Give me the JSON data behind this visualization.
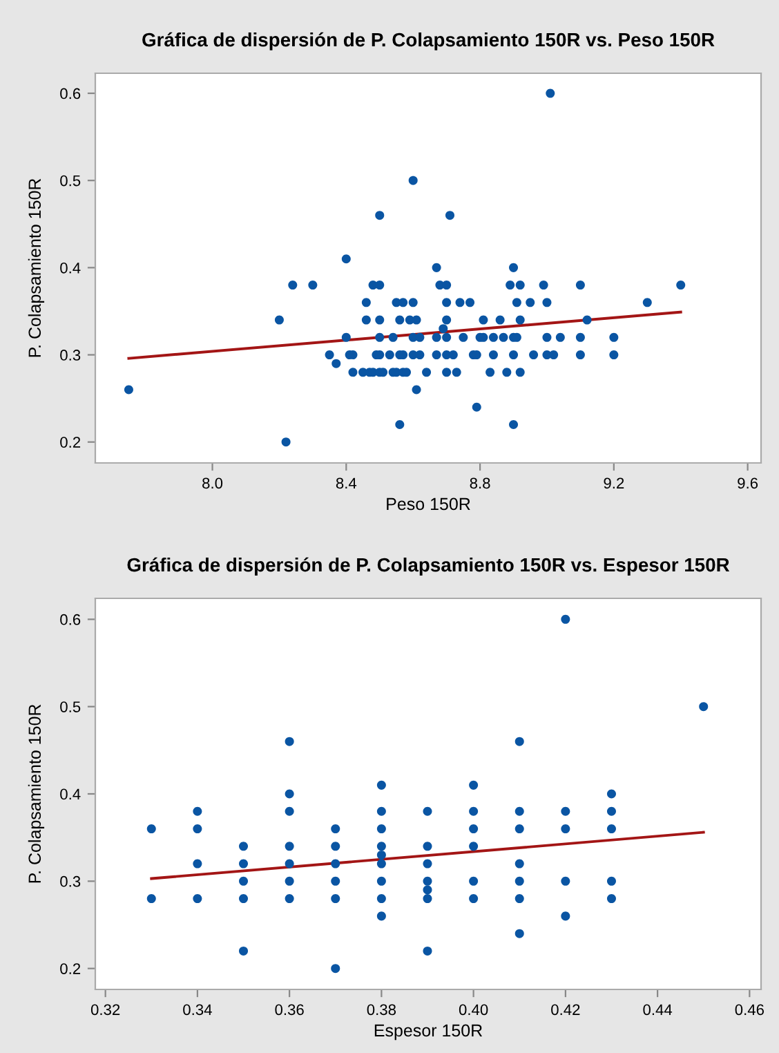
{
  "chart_data": [
    {
      "type": "scatter",
      "title": "Gráfica de dispersión de P. Colapsamiento 150R vs. Peso 150R",
      "xlabel": "Peso 150R",
      "ylabel": "P. Colapsamiento 150R",
      "xlim": [
        7.65,
        9.64
      ],
      "ylim": [
        0.176,
        0.623
      ],
      "xticks": [
        {
          "value": 8.0,
          "label": "8.0"
        },
        {
          "value": 8.4,
          "label": "8.4"
        },
        {
          "value": 8.8,
          "label": "8.8"
        },
        {
          "value": 9.2,
          "label": "9.2"
        },
        {
          "value": 9.6,
          "label": "9.6"
        }
      ],
      "yticks": [
        0.2,
        0.3,
        0.4,
        0.5,
        0.6
      ],
      "grid": false,
      "legend": false,
      "series": [
        {
          "marker": "circle",
          "color": "#0a55a3",
          "x": [
            7.75,
            8.22,
            8.2,
            8.24,
            8.3,
            8.35,
            8.37,
            8.4,
            8.4,
            8.41,
            8.42,
            8.42,
            8.45,
            8.47,
            8.48,
            8.5,
            8.51,
            8.54,
            8.55,
            8.57,
            8.58,
            8.64,
            8.46,
            8.46,
            8.48,
            8.5,
            8.5,
            8.5,
            8.5,
            8.49,
            8.5,
            8.53,
            8.56,
            8.57,
            8.54,
            8.55,
            8.57,
            8.56,
            8.56,
            8.6,
            8.6,
            8.59,
            8.61,
            8.6,
            8.62,
            8.6,
            8.62,
            8.61,
            8.67,
            8.68,
            8.7,
            8.7,
            8.7,
            8.69,
            8.67,
            8.7,
            8.67,
            8.7,
            8.72,
            8.7,
            8.73,
            8.71,
            8.74,
            8.77,
            8.75,
            8.78,
            8.79,
            8.79,
            8.8,
            8.81,
            8.81,
            8.83,
            8.84,
            8.84,
            8.86,
            8.87,
            8.88,
            8.89,
            8.9,
            8.9,
            8.91,
            8.9,
            8.9,
            8.91,
            8.92,
            8.92,
            8.92,
            8.95,
            8.96,
            8.99,
            9.0,
            9.0,
            9.0,
            9.02,
            9.01,
            9.04,
            9.1,
            9.1,
            9.1,
            9.12,
            9.2,
            9.2,
            9.3,
            9.4
          ],
          "values": [
            0.26,
            0.2,
            0.34,
            0.38,
            0.38,
            0.3,
            0.29,
            0.32,
            0.41,
            0.3,
            0.3,
            0.28,
            0.28,
            0.28,
            0.28,
            0.28,
            0.28,
            0.28,
            0.28,
            0.28,
            0.28,
            0.28,
            0.36,
            0.34,
            0.38,
            0.38,
            0.46,
            0.34,
            0.32,
            0.3,
            0.3,
            0.3,
            0.3,
            0.3,
            0.32,
            0.36,
            0.36,
            0.34,
            0.22,
            0.5,
            0.36,
            0.34,
            0.34,
            0.32,
            0.32,
            0.3,
            0.3,
            0.26,
            0.4,
            0.38,
            0.38,
            0.36,
            0.34,
            0.33,
            0.32,
            0.32,
            0.3,
            0.3,
            0.3,
            0.28,
            0.28,
            0.46,
            0.36,
            0.36,
            0.32,
            0.3,
            0.3,
            0.24,
            0.32,
            0.32,
            0.34,
            0.28,
            0.32,
            0.3,
            0.34,
            0.32,
            0.28,
            0.38,
            0.4,
            0.32,
            0.32,
            0.3,
            0.22,
            0.36,
            0.38,
            0.34,
            0.28,
            0.36,
            0.3,
            0.38,
            0.36,
            0.32,
            0.3,
            0.3,
            0.6,
            0.32,
            0.38,
            0.32,
            0.3,
            0.34,
            0.32,
            0.3,
            0.36,
            0.38
          ]
        },
        {
          "type": "line",
          "color": "#a31515",
          "x": [
            7.75,
            9.4
          ],
          "values": [
            0.296,
            0.349
          ]
        }
      ]
    },
    {
      "type": "scatter",
      "title": "Gráfica de dispersión de P. Colapsamiento 150R vs. Espesor 150R",
      "xlabel": "Espesor 150R",
      "ylabel": "P. Colapsamiento 150R",
      "xlim": [
        0.3178,
        0.4625
      ],
      "ylim": [
        0.176,
        0.624
      ],
      "xticks": [
        {
          "value": 0.32,
          "label": "0.32"
        },
        {
          "value": 0.34,
          "label": "0.34"
        },
        {
          "value": 0.36,
          "label": "0.36"
        },
        {
          "value": 0.38,
          "label": "0.38"
        },
        {
          "value": 0.4,
          "label": "0.40"
        },
        {
          "value": 0.42,
          "label": "0.42"
        },
        {
          "value": 0.44,
          "label": "0.44"
        },
        {
          "value": 0.46,
          "label": "0.46"
        }
      ],
      "yticks": [
        0.2,
        0.3,
        0.4,
        0.5,
        0.6
      ],
      "grid": false,
      "legend": false,
      "series": [
        {
          "marker": "circle",
          "color": "#0a55a3",
          "x": [
            0.33,
            0.33,
            0.34,
            0.34,
            0.34,
            0.34,
            0.35,
            0.35,
            0.35,
            0.35,
            0.35,
            0.36,
            0.36,
            0.36,
            0.36,
            0.36,
            0.36,
            0.36,
            0.37,
            0.37,
            0.37,
            0.37,
            0.37,
            0.37,
            0.38,
            0.38,
            0.38,
            0.38,
            0.38,
            0.38,
            0.38,
            0.38,
            0.38,
            0.39,
            0.39,
            0.39,
            0.39,
            0.39,
            0.39,
            0.39,
            0.4,
            0.4,
            0.4,
            0.4,
            0.4,
            0.4,
            0.41,
            0.41,
            0.41,
            0.41,
            0.41,
            0.41,
            0.41,
            0.42,
            0.42,
            0.42,
            0.42,
            0.42,
            0.43,
            0.43,
            0.43,
            0.43,
            0.43,
            0.45
          ],
          "values": [
            0.36,
            0.28,
            0.38,
            0.36,
            0.32,
            0.28,
            0.34,
            0.32,
            0.3,
            0.28,
            0.22,
            0.46,
            0.4,
            0.38,
            0.34,
            0.32,
            0.3,
            0.28,
            0.36,
            0.34,
            0.32,
            0.3,
            0.28,
            0.2,
            0.41,
            0.38,
            0.36,
            0.34,
            0.33,
            0.32,
            0.3,
            0.28,
            0.26,
            0.38,
            0.34,
            0.32,
            0.3,
            0.29,
            0.28,
            0.22,
            0.41,
            0.38,
            0.36,
            0.34,
            0.3,
            0.28,
            0.46,
            0.38,
            0.36,
            0.32,
            0.3,
            0.28,
            0.24,
            0.6,
            0.38,
            0.36,
            0.3,
            0.26,
            0.4,
            0.38,
            0.36,
            0.3,
            0.28,
            0.5
          ]
        },
        {
          "type": "line",
          "color": "#a31515",
          "x": [
            0.33,
            0.45
          ],
          "values": [
            0.303,
            0.356
          ]
        }
      ]
    }
  ]
}
